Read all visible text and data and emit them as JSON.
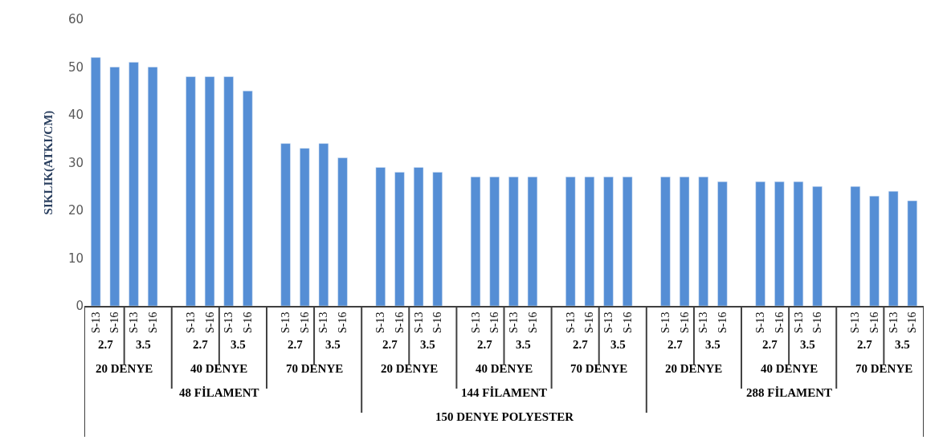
{
  "chart_data": {
    "type": "bar",
    "ylabel": "SIKLIK(ATKI/CM)",
    "categories": [
      "S-13",
      "S-16",
      "S-13",
      "S-16",
      null,
      "S-13",
      "S-16",
      "S-13",
      "S-16",
      null,
      "S-13",
      "S-16",
      "S-13",
      "S-16",
      null,
      "S-13",
      "S-16",
      "S-13",
      "S-16",
      null,
      "S-13",
      "S-16",
      "S-13",
      "S-16",
      null,
      "S-13",
      "S-16",
      "S-13",
      "S-16",
      null,
      "S-13",
      "S-16",
      "S-13",
      "S-16",
      null,
      "S-13",
      "S-16",
      "S-13",
      "S-16",
      null,
      "S-13",
      "S-16",
      "S-13",
      "S-16"
    ],
    "values": [
      52,
      50,
      51,
      50,
      null,
      48,
      48,
      48,
      45,
      null,
      34,
      33,
      34,
      31,
      null,
      29,
      28,
      29,
      28,
      null,
      27,
      27,
      27,
      27,
      null,
      27,
      27,
      27,
      27,
      null,
      27,
      27,
      27,
      26,
      null,
      26,
      26,
      26,
      25,
      null,
      25,
      23,
      24,
      22
    ],
    "color": "#558ed5",
    "ylim": [
      0,
      60
    ],
    "yticks": [
      0,
      10,
      20,
      30,
      40,
      50,
      60
    ],
    "annotations": [
      "2.7",
      "3.5",
      "2.7",
      "3.5",
      "2.7",
      "3.5",
      "2.7",
      "3.5",
      "2.7",
      "3.5",
      "2.7",
      "3.5",
      "2.7",
      "3.5",
      "2.7",
      "3.5",
      "2.7",
      "3.5",
      "20 DENYE",
      "40 DENYE",
      "70 DENYE",
      "20 DENYE",
      "40 DENYE",
      "70 DENYE",
      "20 DENYE",
      "40 DENYE",
      "70 DENYE",
      "48 FİLAMENT",
      "144 FİLAMENT",
      "288 FİLAMENT",
      "150 DENYE POLYESTER"
    ]
  }
}
